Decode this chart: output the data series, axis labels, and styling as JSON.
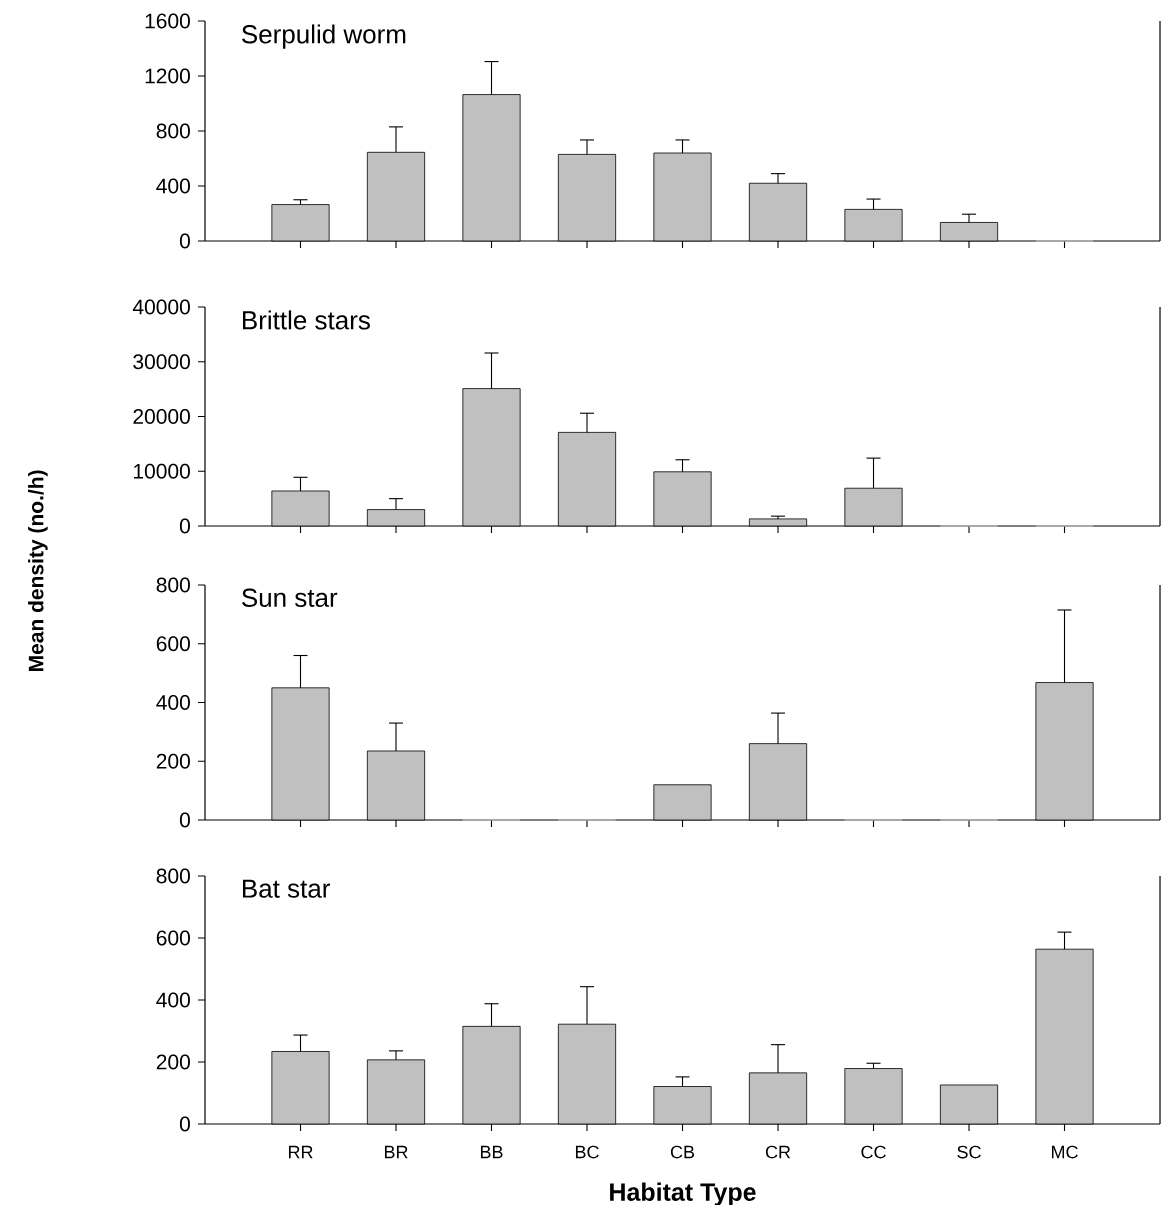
{
  "chart_data": [
    {
      "type": "bar",
      "title": "Serpulid worm",
      "categories": [
        null,
        null,
        null,
        null,
        null,
        null,
        null,
        null,
        null
      ],
      "values": [
        265,
        645,
        1065,
        630,
        640,
        420,
        230,
        135,
        0
      ],
      "errors": [
        [
          265,
          300
        ],
        [
          645,
          830
        ],
        [
          1065,
          1305
        ],
        [
          630,
          735
        ],
        [
          640,
          735
        ],
        [
          420,
          490
        ],
        [
          230,
          305
        ],
        [
          135,
          195
        ],
        null
      ],
      "color": "#c0c0c0",
      "ylim": [
        0,
        1600
      ],
      "yticks": [
        0,
        400,
        800,
        1200,
        1600
      ],
      "tick_labels": "y"
    },
    {
      "type": "bar",
      "title": "Brittle stars",
      "categories": [
        null,
        null,
        null,
        null,
        null,
        null,
        null,
        null,
        null
      ],
      "values": [
        6400,
        3000,
        25100,
        17100,
        9900,
        1300,
        6900,
        0,
        0
      ],
      "errors": [
        [
          6400,
          8900
        ],
        [
          3000,
          5000
        ],
        [
          25100,
          31600
        ],
        [
          17100,
          20600
        ],
        [
          9900,
          12100
        ],
        [
          1300,
          1800
        ],
        [
          6900,
          12400
        ],
        null,
        null
      ],
      "color": "#c0c0c0",
      "ylim": [
        0,
        40000
      ],
      "yticks": [
        0,
        10000,
        20000,
        30000,
        40000
      ],
      "tick_labels": "y"
    },
    {
      "type": "bar",
      "title": "Sun star",
      "ylabel": "Mean density (no./h)",
      "categories": [
        null,
        null,
        null,
        null,
        null,
        null,
        null,
        null,
        null
      ],
      "values": [
        450,
        235,
        0,
        0,
        120,
        260,
        0,
        0,
        468
      ],
      "errors": [
        [
          450,
          560
        ],
        [
          235,
          330
        ],
        null,
        null,
        null,
        [
          260,
          364
        ],
        null,
        null,
        [
          468,
          715
        ]
      ],
      "color": "#c0c0c0",
      "ylim": [
        0,
        800
      ],
      "yticks": [
        0,
        200,
        400,
        600,
        800
      ],
      "tick_labels": "y"
    },
    {
      "type": "bar",
      "title": "Bat star",
      "xlabel": "Habitat Type",
      "categories": [
        "RR",
        "BR",
        "BB",
        "BC",
        "CB",
        "CR",
        "CC",
        "SC",
        "MC"
      ],
      "values": [
        234,
        207,
        315,
        322,
        121,
        165,
        179,
        126,
        564
      ],
      "errors": [
        [
          234,
          287
        ],
        [
          207,
          236
        ],
        [
          315,
          388
        ],
        [
          322,
          443
        ],
        [
          121,
          152
        ],
        [
          165,
          256
        ],
        [
          179,
          196
        ],
        null,
        [
          564,
          619
        ]
      ],
      "color": "#c0c0c0",
      "ylim": [
        0,
        800
      ],
      "yticks": [
        0,
        200,
        400,
        600,
        800
      ]
    }
  ]
}
